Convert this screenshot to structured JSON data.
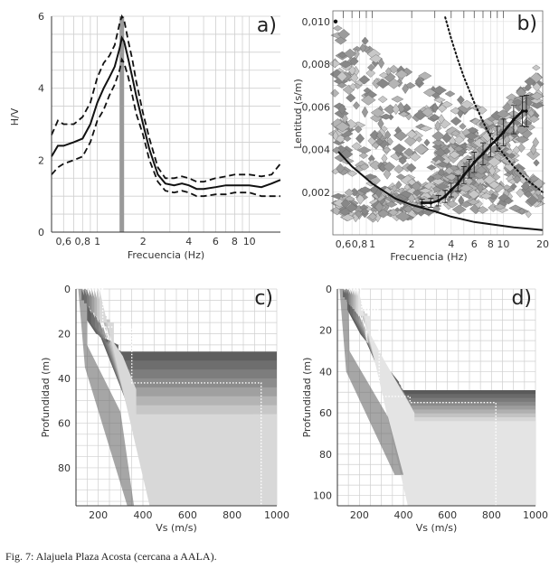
{
  "caption": "Fig. 7: Alajuela Plaza Acosta (cercana a AALA).",
  "chart_data": [
    {
      "panel": "a)",
      "type": "line",
      "xlabel": "Frecuencia (Hz)",
      "ylabel": "H/V",
      "xscale": "log",
      "xlim": [
        0.5,
        16
      ],
      "ylim": [
        0,
        6
      ],
      "xticks": [
        0.6,
        0.8,
        1,
        2,
        4,
        6,
        8,
        10
      ],
      "xticklabels": [
        "0,6",
        "0,8",
        "1",
        "2",
        "4",
        "6",
        "8",
        "10"
      ],
      "yticks": [
        0,
        2,
        4,
        6
      ],
      "peak_frequency_band": [
        1.4,
        1.5
      ],
      "series": [
        {
          "style": "solid",
          "x": [
            0.5,
            0.55,
            0.6,
            0.7,
            0.8,
            0.9,
            1.0,
            1.1,
            1.2,
            1.3,
            1.4,
            1.45,
            1.5,
            1.6,
            1.7,
            1.8,
            2.0,
            2.2,
            2.5,
            2.8,
            3.2,
            3.6,
            4.0,
            4.5,
            5,
            6,
            7,
            8,
            10,
            12,
            14,
            16
          ],
          "y": [
            2.1,
            2.4,
            2.4,
            2.5,
            2.6,
            3.0,
            3.6,
            4.0,
            4.3,
            4.6,
            5.1,
            5.4,
            5.3,
            4.8,
            4.3,
            3.8,
            3.0,
            2.3,
            1.6,
            1.35,
            1.3,
            1.35,
            1.3,
            1.2,
            1.2,
            1.25,
            1.3,
            1.3,
            1.3,
            1.25,
            1.35,
            1.45
          ]
        },
        {
          "style": "dashed",
          "x": [
            0.5,
            0.55,
            0.6,
            0.7,
            0.8,
            0.9,
            1.0,
            1.1,
            1.2,
            1.3,
            1.4,
            1.45,
            1.5,
            1.6,
            1.7,
            1.8,
            2.0,
            2.2,
            2.5,
            2.8,
            3.2,
            3.6,
            4.0,
            4.5,
            5,
            6,
            7,
            8,
            10,
            12,
            14,
            16
          ],
          "y": [
            2.7,
            3.1,
            3.0,
            3.0,
            3.2,
            3.6,
            4.3,
            4.7,
            4.9,
            5.2,
            5.8,
            6.0,
            5.9,
            5.3,
            4.8,
            4.2,
            3.3,
            2.6,
            1.8,
            1.5,
            1.5,
            1.55,
            1.5,
            1.4,
            1.4,
            1.5,
            1.55,
            1.6,
            1.6,
            1.55,
            1.6,
            1.9
          ]
        },
        {
          "style": "dashed",
          "x": [
            0.5,
            0.55,
            0.6,
            0.7,
            0.8,
            0.9,
            1.0,
            1.1,
            1.2,
            1.3,
            1.4,
            1.45,
            1.5,
            1.6,
            1.7,
            1.8,
            2.0,
            2.2,
            2.5,
            2.8,
            3.2,
            3.6,
            4.0,
            4.5,
            5,
            6,
            7,
            8,
            10,
            12,
            14,
            16
          ],
          "y": [
            1.6,
            1.8,
            1.9,
            2.0,
            2.1,
            2.5,
            3.1,
            3.4,
            3.8,
            4.1,
            4.5,
            4.8,
            4.7,
            4.3,
            3.8,
            3.3,
            2.7,
            2.0,
            1.4,
            1.15,
            1.1,
            1.15,
            1.1,
            1.0,
            1.0,
            1.05,
            1.05,
            1.1,
            1.1,
            1.0,
            1.0,
            1.0
          ]
        }
      ]
    },
    {
      "panel": "b)",
      "type": "line",
      "xlabel": "Frecuencia (Hz)",
      "ylabel": "Lentitud (s/m)",
      "xscale": "log",
      "xlim": [
        0.5,
        20
      ],
      "ylim": [
        0,
        0.0105
      ],
      "xticks": [
        0.6,
        0.8,
        1,
        2,
        4,
        6,
        8,
        10,
        20
      ],
      "xticklabels": [
        "0,6",
        "0,8",
        "1",
        "2",
        "4",
        "6",
        "8",
        "10",
        "20"
      ],
      "yticks": [
        0.002,
        0.004,
        0.006,
        0.008,
        0.01
      ],
      "yticklabels": [
        "0,002",
        "0,004",
        "0,006",
        "0,008",
        "0,010"
      ],
      "dispersion_curve": {
        "x": [
          2.4,
          2.8,
          3.2,
          3.6,
          4.0,
          4.5,
          5,
          5.5,
          6,
          7,
          8,
          9,
          10,
          12,
          14,
          15
        ],
        "y": [
          0.0015,
          0.0015,
          0.0016,
          0.0018,
          0.0021,
          0.0024,
          0.0028,
          0.0031,
          0.0034,
          0.0038,
          0.0042,
          0.0045,
          0.0048,
          0.0054,
          0.0058,
          0.0058
        ]
      },
      "aliasing_limit_solid": {
        "x": [
          0.55,
          0.7,
          1.0,
          1.5,
          2,
          3,
          4,
          6,
          8,
          12,
          16,
          20
        ],
        "y": [
          0.0039,
          0.0032,
          0.0024,
          0.0017,
          0.0014,
          0.0011,
          0.00085,
          0.0006,
          0.0005,
          0.00035,
          0.00028,
          0.00022
        ]
      },
      "aliasing_limit_dotted": {
        "x": [
          3.6,
          4.0,
          4.5,
          5,
          6,
          7,
          8,
          10,
          12,
          15,
          20
        ],
        "y": [
          0.0102,
          0.0092,
          0.0082,
          0.0074,
          0.0062,
          0.0053,
          0.0046,
          0.0038,
          0.0032,
          0.0026,
          0.002
        ]
      }
    },
    {
      "panel": "c)",
      "type": "line",
      "xlabel": "Vs (m/s)",
      "ylabel": "Profundidad (m)",
      "xlim": [
        100,
        1000
      ],
      "ylim": [
        97,
        0
      ],
      "xticks": [
        200,
        400,
        600,
        800,
        1000
      ],
      "yticks": [
        0,
        20,
        40,
        60,
        80
      ],
      "best_profile": {
        "vs": [
          130,
          220,
          220,
          350,
          350,
          930,
          930
        ],
        "depth": [
          0,
          0,
          17,
          17,
          42,
          42,
          97
        ]
      }
    },
    {
      "panel": "d)",
      "type": "line",
      "xlabel": "Vs (m/s)",
      "ylabel": "Profundidad (m)",
      "xlim": [
        100,
        1000
      ],
      "ylim": [
        105,
        0
      ],
      "xticks": [
        200,
        400,
        600,
        800,
        1000
      ],
      "yticks": [
        0,
        20,
        40,
        60,
        80,
        100
      ],
      "best_profile": {
        "vs": [
          130,
          210,
          210,
          290,
          290,
          430,
          430,
          820,
          820
        ],
        "depth": [
          0,
          0,
          10,
          10,
          52,
          52,
          55,
          55,
          105
        ]
      }
    }
  ]
}
